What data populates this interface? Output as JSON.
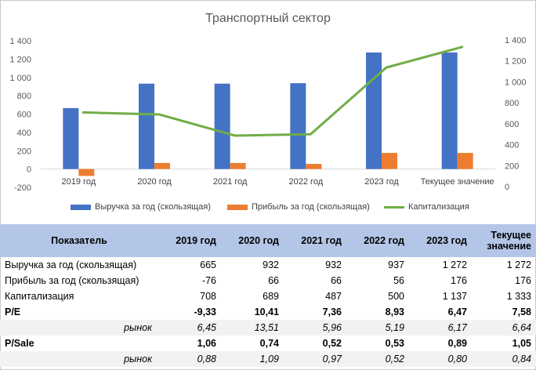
{
  "chart_data": {
    "type": "bar",
    "title": "Транспортный сектор",
    "categories": [
      "2019 год",
      "2020 год",
      "2021 год",
      "2022 год",
      "2023 год",
      "Текущее значение"
    ],
    "series": [
      {
        "name": "Выручка за год (скользящая)",
        "type": "bar",
        "axis": "left",
        "color": "#4472c4",
        "values": [
          665,
          932,
          932,
          937,
          1272,
          1272
        ]
      },
      {
        "name": "Прибыль за год (скользящая)",
        "type": "bar",
        "axis": "left",
        "color": "#ed7d31",
        "values": [
          -76,
          66,
          66,
          56,
          176,
          176
        ]
      },
      {
        "name": "Капитализация",
        "type": "line",
        "axis": "right",
        "color": "#70ad47",
        "values": [
          708,
          689,
          487,
          500,
          1137,
          1333
        ]
      }
    ],
    "y_left": {
      "range": [
        -200,
        1400
      ],
      "ticks": [
        "-200",
        "0",
        "200",
        "400",
        "600",
        "800",
        "1 000",
        "1 200",
        "1 400"
      ]
    },
    "y_right": {
      "range": [
        0,
        1400
      ],
      "ticks": [
        "0",
        "200",
        "400",
        "600",
        "800",
        "1 000",
        "1 200",
        "1 400"
      ]
    },
    "grid": false,
    "legend": "bottom"
  },
  "table": {
    "headers": [
      "Показатель",
      "2019 год",
      "2020 год",
      "2021 год",
      "2022 год",
      "2023 год",
      "Текущее значение"
    ],
    "rows": [
      {
        "style": "normal",
        "cells": [
          "Выручка за год (скользящая)",
          "665",
          "932",
          "932",
          "937",
          "1 272",
          "1 272"
        ]
      },
      {
        "style": "normal",
        "cells": [
          "Прибыль за год (скользящая)",
          "-76",
          "66",
          "66",
          "56",
          "176",
          "176"
        ]
      },
      {
        "style": "normal",
        "cells": [
          "Капитализация",
          "708",
          "689",
          "487",
          "500",
          "1 137",
          "1 333"
        ]
      },
      {
        "style": "bold",
        "cells": [
          "P/E",
          "-9,33",
          "10,41",
          "7,36",
          "8,93",
          "6,47",
          "7,58"
        ]
      },
      {
        "style": "gray",
        "cells": [
          "рынок",
          "6,45",
          "13,51",
          "5,96",
          "5,19",
          "6,17",
          "6,64"
        ]
      },
      {
        "style": "bold",
        "cells": [
          "P/Sale",
          "1,06",
          "0,74",
          "0,52",
          "0,53",
          "0,89",
          "1,05"
        ]
      },
      {
        "style": "gray",
        "cells": [
          "рынок",
          "0,88",
          "1,09",
          "0,97",
          "0,52",
          "0,80",
          "0,84"
        ]
      }
    ]
  }
}
